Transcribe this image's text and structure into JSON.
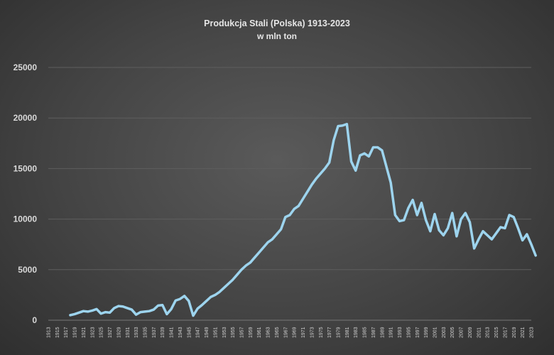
{
  "chart_data": {
    "type": "line",
    "title": "Produkcja Stali (Polska) 1913-2023",
    "subtitle": "w mln ton",
    "xlabel": "",
    "ylabel": "",
    "ylim": [
      0,
      25000
    ],
    "yticks": [
      0,
      5000,
      10000,
      15000,
      20000,
      25000
    ],
    "ytick_labels": [
      "0",
      "5000",
      "10000",
      "15000",
      "20000",
      "25000"
    ],
    "xticks": [
      "1913",
      "1915",
      "1917",
      "1919",
      "1921",
      "1923",
      "1925",
      "1927",
      "1929",
      "1931",
      "1933",
      "1935",
      "1937",
      "1939",
      "1941",
      "1943",
      "1945",
      "1947",
      "1949",
      "1951",
      "1953",
      "1955",
      "1957",
      "1959",
      "1961",
      "1963",
      "1965",
      "1967",
      "1969",
      "1971",
      "1973",
      "1975",
      "1977",
      "1979",
      "1981",
      "1983",
      "1985",
      "1987",
      "1989",
      "1991",
      "1993",
      "1995",
      "1997",
      "1999",
      "2001",
      "2003",
      "2005",
      "2007",
      "2009",
      "2011",
      "2013",
      "2015",
      "2017",
      "2019",
      "2021",
      "2023"
    ],
    "x_start": 1913,
    "x_end": 2023,
    "grid": true,
    "line_color": "#9dd4ee",
    "series": [
      {
        "values": [
          [
            1918,
            500
          ],
          [
            1919,
            600
          ],
          [
            1920,
            750
          ],
          [
            1921,
            900
          ],
          [
            1922,
            850
          ],
          [
            1923,
            950
          ],
          [
            1924,
            1100
          ],
          [
            1925,
            650
          ],
          [
            1926,
            800
          ],
          [
            1927,
            750
          ],
          [
            1928,
            1200
          ],
          [
            1929,
            1400
          ],
          [
            1930,
            1350
          ],
          [
            1931,
            1200
          ],
          [
            1932,
            1050
          ],
          [
            1933,
            550
          ],
          [
            1934,
            800
          ],
          [
            1935,
            850
          ],
          [
            1936,
            900
          ],
          [
            1937,
            1050
          ],
          [
            1938,
            1450
          ],
          [
            1939,
            1500
          ],
          [
            1940,
            600
          ],
          [
            1941,
            1100
          ],
          [
            1942,
            1950
          ],
          [
            1943,
            2100
          ],
          [
            1944,
            2400
          ],
          [
            1945,
            1900
          ],
          [
            1946,
            450
          ],
          [
            1947,
            1150
          ],
          [
            1948,
            1500
          ],
          [
            1949,
            1900
          ],
          [
            1950,
            2300
          ],
          [
            1951,
            2500
          ],
          [
            1952,
            2800
          ],
          [
            1953,
            3200
          ],
          [
            1954,
            3600
          ],
          [
            1955,
            4000
          ],
          [
            1956,
            4500
          ],
          [
            1957,
            5000
          ],
          [
            1958,
            5400
          ],
          [
            1959,
            5700
          ],
          [
            1960,
            6200
          ],
          [
            1961,
            6700
          ],
          [
            1962,
            7200
          ],
          [
            1963,
            7700
          ],
          [
            1964,
            8000
          ],
          [
            1965,
            8500
          ],
          [
            1966,
            9000
          ],
          [
            1967,
            10200
          ],
          [
            1968,
            10400
          ],
          [
            1969,
            11000
          ],
          [
            1970,
            11300
          ],
          [
            1971,
            12000
          ],
          [
            1972,
            12700
          ],
          [
            1973,
            13400
          ],
          [
            1974,
            14000
          ],
          [
            1975,
            14500
          ],
          [
            1976,
            15000
          ],
          [
            1977,
            15600
          ],
          [
            1978,
            17800
          ],
          [
            1979,
            19200
          ],
          [
            1980,
            19250
          ],
          [
            1981,
            19400
          ],
          [
            1982,
            15700
          ],
          [
            1983,
            14800
          ],
          [
            1984,
            16300
          ],
          [
            1985,
            16500
          ],
          [
            1986,
            16200
          ],
          [
            1987,
            17100
          ],
          [
            1988,
            17100
          ],
          [
            1989,
            16800
          ],
          [
            1990,
            15200
          ],
          [
            1991,
            13600
          ],
          [
            1992,
            10400
          ],
          [
            1993,
            9800
          ],
          [
            1994,
            9900
          ],
          [
            1995,
            11100
          ],
          [
            1996,
            11900
          ],
          [
            1997,
            10400
          ],
          [
            1998,
            11600
          ],
          [
            1999,
            9900
          ],
          [
            2000,
            8800
          ],
          [
            2001,
            10500
          ],
          [
            2002,
            8900
          ],
          [
            2003,
            8400
          ],
          [
            2004,
            9100
          ],
          [
            2005,
            10600
          ],
          [
            2006,
            8300
          ],
          [
            2007,
            10000
          ],
          [
            2008,
            10600
          ],
          [
            2009,
            9700
          ],
          [
            2010,
            7100
          ],
          [
            2011,
            8000
          ],
          [
            2012,
            8800
          ],
          [
            2013,
            8400
          ],
          [
            2014,
            8000
          ],
          [
            2015,
            8600
          ],
          [
            2016,
            9200
          ],
          [
            2017,
            9100
          ],
          [
            2018,
            10400
          ],
          [
            2019,
            10200
          ],
          [
            2020,
            9100
          ],
          [
            2021,
            7900
          ],
          [
            2022,
            8500
          ],
          [
            2023,
            7500
          ],
          [
            2024,
            6400
          ]
        ]
      }
    ]
  }
}
